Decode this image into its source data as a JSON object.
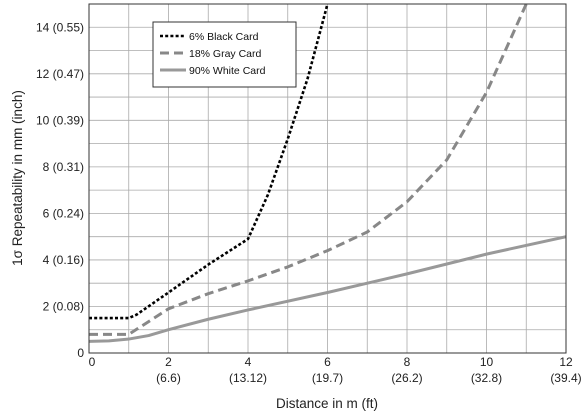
{
  "chart_data": {
    "type": "line",
    "xlabel": "Distance in m (ft)",
    "ylabel": "1σ Repeatability in mm (inch)",
    "xlim": [
      0,
      12
    ],
    "ylim": [
      0,
      15
    ],
    "grid": true,
    "legend_position": "top-left",
    "x_ticks": [
      {
        "value": 0,
        "label": "0",
        "sub": ""
      },
      {
        "value": 2,
        "label": "2",
        "sub": "(6.6)"
      },
      {
        "value": 4,
        "label": "4",
        "sub": "(13.12)"
      },
      {
        "value": 6,
        "label": "6",
        "sub": "(19.7)"
      },
      {
        "value": 8,
        "label": "8",
        "sub": "(26.2)"
      },
      {
        "value": 10,
        "label": "10",
        "sub": "(32.8)"
      },
      {
        "value": 12,
        "label": "12",
        "sub": "(39.4)"
      }
    ],
    "y_ticks": [
      {
        "value": 0,
        "label": "0"
      },
      {
        "value": 2,
        "label": "2 (0.08)"
      },
      {
        "value": 4,
        "label": "4 (0.16)"
      },
      {
        "value": 6,
        "label": "6 (0.24)"
      },
      {
        "value": 8,
        "label": "8 (0.31)"
      },
      {
        "value": 10,
        "label": "10 (0.39)"
      },
      {
        "value": 12,
        "label": "12 (0.47)"
      },
      {
        "value": 14,
        "label": "14 (0.55)"
      }
    ],
    "series": [
      {
        "name": "6% Black Card",
        "color": "#000000",
        "style": "dotted",
        "points": [
          [
            0,
            1.5
          ],
          [
            1,
            1.5
          ],
          [
            1.2,
            1.65
          ],
          [
            2,
            2.6
          ],
          [
            3,
            3.8
          ],
          [
            4,
            4.9
          ],
          [
            4.5,
            6.8
          ],
          [
            5,
            9.2
          ],
          [
            5.5,
            11.8
          ],
          [
            6,
            15
          ]
        ]
      },
      {
        "name": "18% Gray Card",
        "color": "#888888",
        "style": "dashed",
        "points": [
          [
            0,
            0.8
          ],
          [
            1,
            0.8
          ],
          [
            2,
            1.9
          ],
          [
            3,
            2.55
          ],
          [
            4,
            3.1
          ],
          [
            5,
            3.7
          ],
          [
            6,
            4.4
          ],
          [
            7,
            5.2
          ],
          [
            8,
            6.5
          ],
          [
            9,
            8.3
          ],
          [
            10,
            11.2
          ],
          [
            11,
            15
          ]
        ]
      },
      {
        "name": "90% White Card",
        "color": "#999999",
        "style": "solid",
        "points": [
          [
            0,
            0.5
          ],
          [
            0.5,
            0.52
          ],
          [
            1,
            0.6
          ],
          [
            1.5,
            0.75
          ],
          [
            2,
            1.0
          ],
          [
            3,
            1.45
          ],
          [
            4,
            1.85
          ],
          [
            6,
            2.6
          ],
          [
            8,
            3.4
          ],
          [
            10,
            4.25
          ],
          [
            12,
            5.0
          ]
        ]
      }
    ]
  }
}
